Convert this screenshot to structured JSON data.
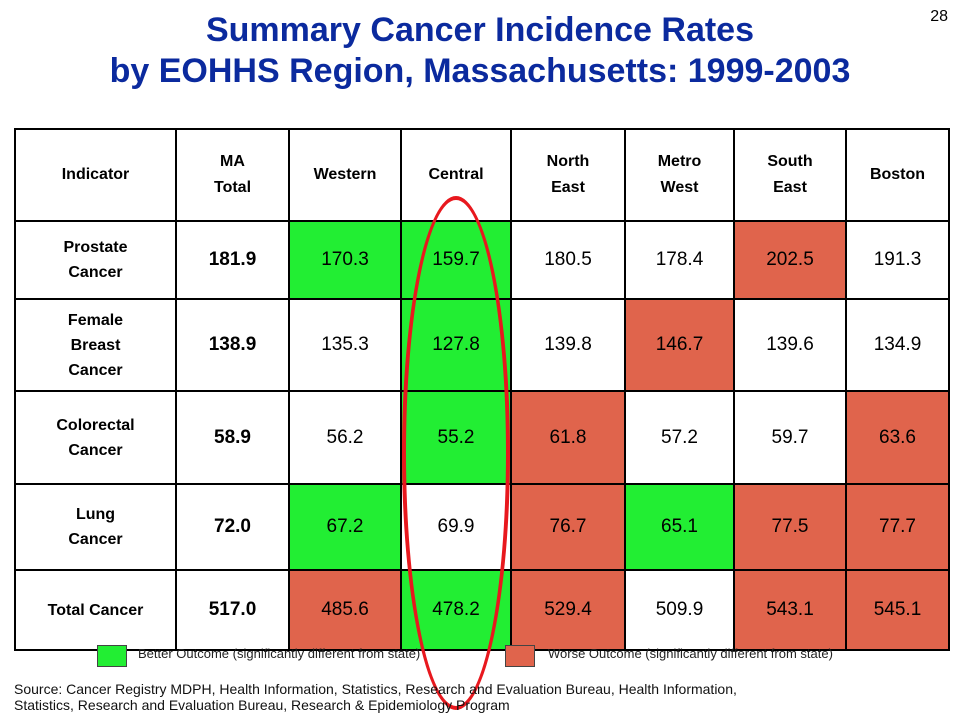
{
  "page_number": "28",
  "title": {
    "line1": "Summary Cancer Incidence Rates",
    "line2": "by EOHHS Region, Massachusetts: 1999-2003"
  },
  "colors": {
    "title": "#0b2a9e",
    "better": "#22ee33",
    "worse": "#e0644c",
    "circle": "#e8181e"
  },
  "table": {
    "headers": {
      "indicator": "Indicator",
      "ma_total_line1": "MA",
      "ma_total_line2": "Total",
      "western": "Western",
      "central": "Central",
      "northeast_line1": "North",
      "northeast_line2": "East",
      "metrowest_line1": "Metro",
      "metrowest_line2": "West",
      "southeast_line1": "South",
      "southeast_line2": "East",
      "boston": "Boston"
    },
    "rows": [
      {
        "label_lines": [
          "Prostate",
          "Cancer"
        ],
        "total": "181.9",
        "values": [
          "170.3",
          "159.7",
          "180.5",
          "178.4",
          "202.5",
          "191.3"
        ],
        "status": [
          "better",
          "better",
          "none",
          "none",
          "worse",
          "none"
        ]
      },
      {
        "label_lines": [
          "Female",
          "Breast",
          "Cancer"
        ],
        "total": "138.9",
        "values": [
          "135.3",
          "127.8",
          "139.8",
          "146.7",
          "139.6",
          "134.9"
        ],
        "status": [
          "none",
          "better",
          "none",
          "worse",
          "none",
          "none"
        ]
      },
      {
        "label_lines": [
          "Colorectal",
          "Cancer"
        ],
        "total": "58.9",
        "values": [
          "56.2",
          "55.2",
          "61.8",
          "57.2",
          "59.7",
          "63.6"
        ],
        "status": [
          "none",
          "better",
          "worse",
          "none",
          "none",
          "worse"
        ]
      },
      {
        "label_lines": [
          "Lung",
          "Cancer"
        ],
        "total": "72.0",
        "values": [
          "67.2",
          "69.9",
          "76.7",
          "65.1",
          "77.5",
          "77.7"
        ],
        "status": [
          "better",
          "none",
          "worse",
          "better",
          "worse",
          "worse"
        ]
      },
      {
        "label_lines": [
          "Total   Cancer"
        ],
        "total": "517.0",
        "values": [
          "485.6",
          "478.2",
          "529.4",
          "509.9",
          "543.1",
          "545.1"
        ],
        "status": [
          "worse",
          "better",
          "worse",
          "none",
          "worse",
          "worse"
        ]
      }
    ]
  },
  "legend": {
    "better": "Better Outcome (significantly different from state)",
    "worse": "Worse Outcome (significantly different from state)"
  },
  "source": {
    "line1": "Source: Cancer Registry MDPH, Health Information, Statistics, Research and Evaluation Bureau, Health Information,",
    "line2": "Statistics, Research and Evaluation Bureau, Research & Epidemiology Program"
  }
}
